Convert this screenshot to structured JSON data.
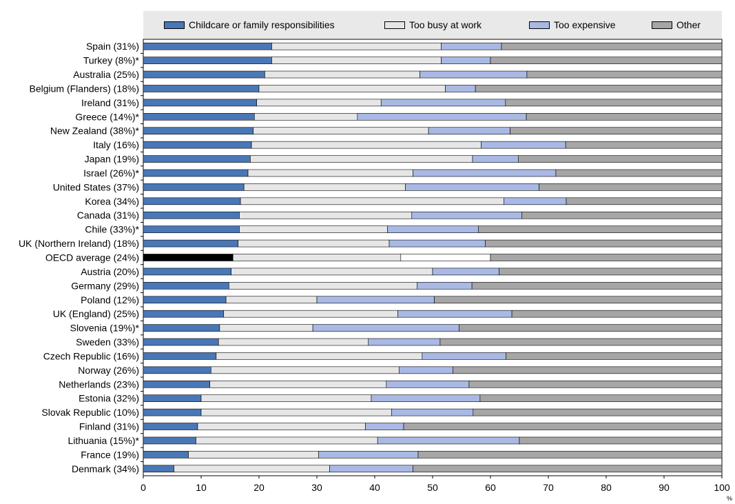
{
  "colors": {
    "childcare": "#4a77b6",
    "busy": "#e6e6e6",
    "expensive": "#a9b9e4",
    "other": "#a6a6a6",
    "oecd_childcare": "#000000",
    "oecd_busy": "#e6e6e6",
    "oecd_expensive": "#ffffff",
    "oecd_other": "#a6a6a6"
  },
  "chart_data": {
    "type": "bar",
    "orientation": "horizontal",
    "stacked": true,
    "xlim": [
      0,
      100
    ],
    "xticks": [
      "0",
      "10",
      "20",
      "30",
      "40",
      "50",
      "60",
      "70",
      "80",
      "90",
      "100"
    ],
    "xunit": "%",
    "legend_position": "top",
    "categories": [
      "Spain (31%)",
      "Turkey (8%)*",
      "Australia (25%)",
      "Belgium (Flanders) (18%)",
      "Ireland (31%)",
      "Greece (14%)*",
      "New Zealand (38%)*",
      "Italy (16%)",
      "Japan (19%)",
      "Israel (26%)*",
      "United States (37%)",
      "Korea (34%)",
      "Canada (31%)",
      "Chile (33%)*",
      "UK (Northern Ireland) (18%)",
      "OECD average (24%)",
      "Austria (20%)",
      "Germany (29%)",
      "Poland (12%)",
      "UK (England) (25%)",
      "Slovenia (19%)*",
      "Sweden (33%)",
      "Czech Republic (16%)",
      "Norway (26%)",
      "Netherlands (23%)",
      "Estonia (32%)",
      "Slovak Republic (10%)",
      "Finland (31%)",
      "Lithuania (15%)*",
      "France (19%)",
      "Denmark (34%)"
    ],
    "highlight_category": "OECD average (24%)",
    "series": [
      {
        "name": "Childcare or family responsibilities",
        "values": [
          22.2,
          22.2,
          21.0,
          20.0,
          19.6,
          19.2,
          19.0,
          18.7,
          18.5,
          18.1,
          17.4,
          16.8,
          16.6,
          16.6,
          16.4,
          15.5,
          15.2,
          14.8,
          14.3,
          13.9,
          13.2,
          13.0,
          12.6,
          11.7,
          11.5,
          10.0,
          10.0,
          9.4,
          9.1,
          7.8,
          5.3
        ]
      },
      {
        "name": "Too busy at work",
        "values": [
          29.3,
          29.3,
          26.8,
          32.2,
          21.5,
          17.8,
          30.3,
          39.7,
          38.4,
          28.5,
          27.9,
          45.5,
          29.8,
          25.6,
          26.1,
          29.0,
          34.8,
          32.5,
          15.7,
          30.1,
          16.1,
          25.9,
          35.6,
          32.5,
          30.5,
          29.4,
          32.9,
          29.0,
          31.4,
          22.5,
          26.9
        ]
      },
      {
        "name": "Too expensive",
        "values": [
          10.4,
          8.5,
          18.5,
          5.2,
          21.5,
          29.2,
          14.1,
          14.6,
          7.9,
          24.7,
          23.1,
          10.8,
          19.0,
          15.7,
          16.6,
          15.5,
          11.5,
          9.5,
          20.3,
          19.7,
          25.3,
          12.4,
          14.5,
          9.3,
          14.3,
          18.8,
          14.1,
          6.6,
          24.5,
          17.2,
          14.4
        ]
      },
      {
        "name": "Other",
        "values": [
          38.1,
          40.0,
          33.7,
          42.6,
          37.4,
          33.8,
          36.6,
          27.0,
          35.2,
          28.7,
          31.6,
          26.9,
          34.6,
          42.1,
          40.9,
          40.0,
          38.5,
          43.2,
          49.7,
          36.3,
          45.4,
          48.7,
          37.3,
          46.5,
          43.7,
          41.8,
          43.0,
          55.0,
          35.0,
          52.5,
          53.4
        ]
      }
    ]
  }
}
